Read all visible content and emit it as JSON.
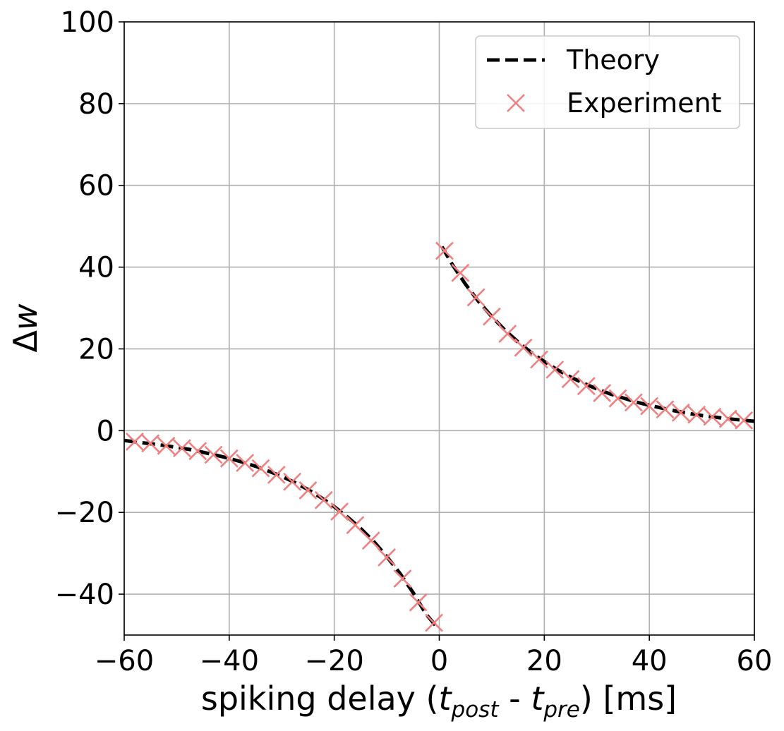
{
  "chart_data": {
    "type": "line",
    "title": "",
    "xlabel": {
      "prefix": "spiking delay (",
      "t1": "t",
      "sub1": "post",
      "mid": " - ",
      "t2": "t",
      "sub2": "pre",
      "suffix": ") [ms]"
    },
    "ylabel": {
      "delta": "Δ",
      "var": "w"
    },
    "xlim": [
      -60,
      60
    ],
    "ylim": [
      -50,
      100
    ],
    "xticks": [
      -60,
      -40,
      -20,
      0,
      20,
      40,
      60
    ],
    "yticks": [
      -40,
      -20,
      0,
      20,
      40,
      60,
      80,
      100
    ],
    "xtick_labels": [
      "−60",
      "−40",
      "−20",
      "0",
      "20",
      "40",
      "60"
    ],
    "ytick_labels": [
      "−40",
      "−20",
      "0",
      "20",
      "40",
      "60",
      "80",
      "100"
    ],
    "grid": true,
    "legend": "top-right",
    "series": [
      {
        "name": "Theory",
        "style": "dashed-line",
        "color": "#000000",
        "negative_branch": {
          "x": [
            -60,
            -57.5,
            -55,
            -52.5,
            -50,
            -47.5,
            -45,
            -42.5,
            -40,
            -37.5,
            -35,
            -32.5,
            -30,
            -27.5,
            -25,
            -22.5,
            -20,
            -17.5,
            -15,
            -12.5,
            -10,
            -7.5,
            -5,
            -2.5,
            -0.5
          ],
          "y": [
            -2.4,
            -2.8,
            -3.2,
            -3.6,
            -4.1,
            -4.6,
            -5.3,
            -6.0,
            -6.8,
            -7.7,
            -8.7,
            -9.9,
            -11.2,
            -12.7,
            -14.4,
            -16.4,
            -18.6,
            -21.1,
            -23.9,
            -27.1,
            -30.8,
            -34.9,
            -39.6,
            -44.9,
            -48.0
          ]
        },
        "positive_branch": {
          "x": [
            0.5,
            2.5,
            5,
            7.5,
            10,
            12.5,
            15,
            17.5,
            20,
            22.5,
            25,
            27.5,
            30,
            32.5,
            35,
            37.5,
            40,
            42.5,
            45,
            47.5,
            50,
            52.5,
            55,
            57.5,
            60
          ],
          "y": [
            45.0,
            40.6,
            35.8,
            31.6,
            27.9,
            24.6,
            21.7,
            19.1,
            16.9,
            14.9,
            13.1,
            11.6,
            10.2,
            9.0,
            8.0,
            7.0,
            6.2,
            5.5,
            4.8,
            4.2,
            3.7,
            3.3,
            2.9,
            2.6,
            2.3
          ]
        }
      },
      {
        "name": "Experiment",
        "style": "x-marker",
        "color": "#f08080",
        "x": [
          -58,
          -55,
          -52,
          -49,
          -46,
          -43,
          -40,
          -37,
          -34,
          -31,
          -28,
          -25,
          -22,
          -19,
          -16,
          -13,
          -10,
          -7,
          -4,
          -1,
          1,
          4,
          7,
          10,
          13,
          16,
          19,
          22,
          25,
          28,
          31,
          34,
          37,
          40,
          43,
          46,
          49,
          52,
          55,
          58
        ],
        "y": [
          -2.7,
          -3.1,
          -3.7,
          -4.3,
          -5.0,
          -5.9,
          -6.8,
          -7.9,
          -9.2,
          -10.8,
          -12.5,
          -14.6,
          -17.0,
          -19.8,
          -23.1,
          -26.9,
          -31.0,
          -36.2,
          -42.0,
          -47.0,
          44.0,
          38.6,
          32.6,
          27.9,
          23.7,
          20.3,
          17.4,
          14.9,
          12.6,
          10.9,
          9.2,
          7.9,
          6.9,
          6.0,
          5.2,
          4.4,
          3.9,
          3.4,
          2.9,
          2.5
        ]
      }
    ]
  }
}
